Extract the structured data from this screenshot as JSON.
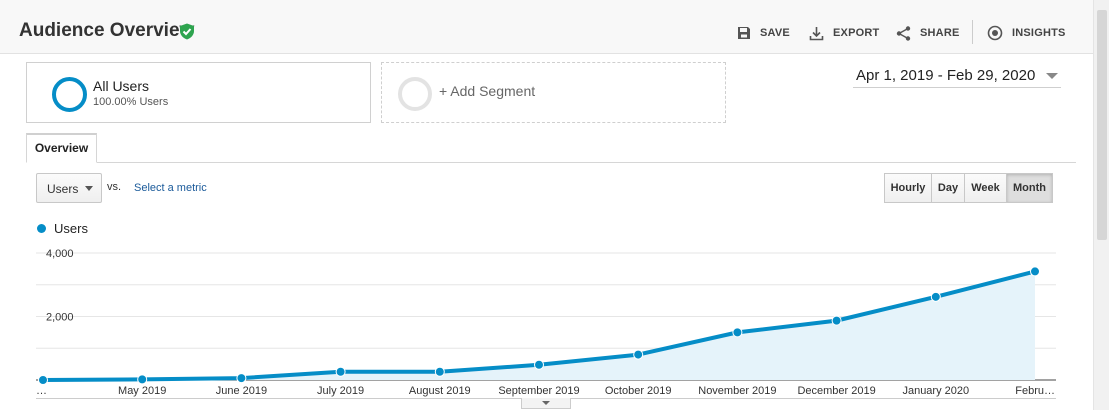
{
  "header": {
    "title": "Audience Overview",
    "toolbar": {
      "save": "SAVE",
      "export": "EXPORT",
      "share": "SHARE",
      "insights": "INSIGHTS"
    }
  },
  "segments": {
    "active": {
      "name": "All Users",
      "percent": "100.00% Users"
    },
    "add_label": "+ Add Segment"
  },
  "date_range": "Apr 1, 2019 - Feb 29, 2020",
  "tabs": [
    "Overview"
  ],
  "controls": {
    "metric": "Users",
    "vs": "vs.",
    "select_metric": "Select a metric",
    "granularity": [
      "Hourly",
      "Day",
      "Week",
      "Month"
    ],
    "active_granularity": "Month"
  },
  "colors": {
    "series": "#058dc7",
    "area": "#e5f3fa",
    "accent_badge": "#2ea44f"
  },
  "chart_data": {
    "type": "area",
    "categories": [
      "…",
      "May 2019",
      "June 2019",
      "July 2019",
      "August 2019",
      "September 2019",
      "October 2019",
      "November 2019",
      "December 2019",
      "January 2020",
      "Febru…"
    ],
    "series": [
      {
        "name": "Users",
        "values": [
          0,
          20,
          60,
          260,
          260,
          480,
          800,
          1500,
          1870,
          2620,
          3420
        ]
      }
    ],
    "y_ticks": [
      "2,000",
      "4,000"
    ],
    "y_tick_values": [
      2000,
      4000
    ],
    "ylim": [
      0,
      4000
    ],
    "legend": "top-left",
    "grid": true
  }
}
